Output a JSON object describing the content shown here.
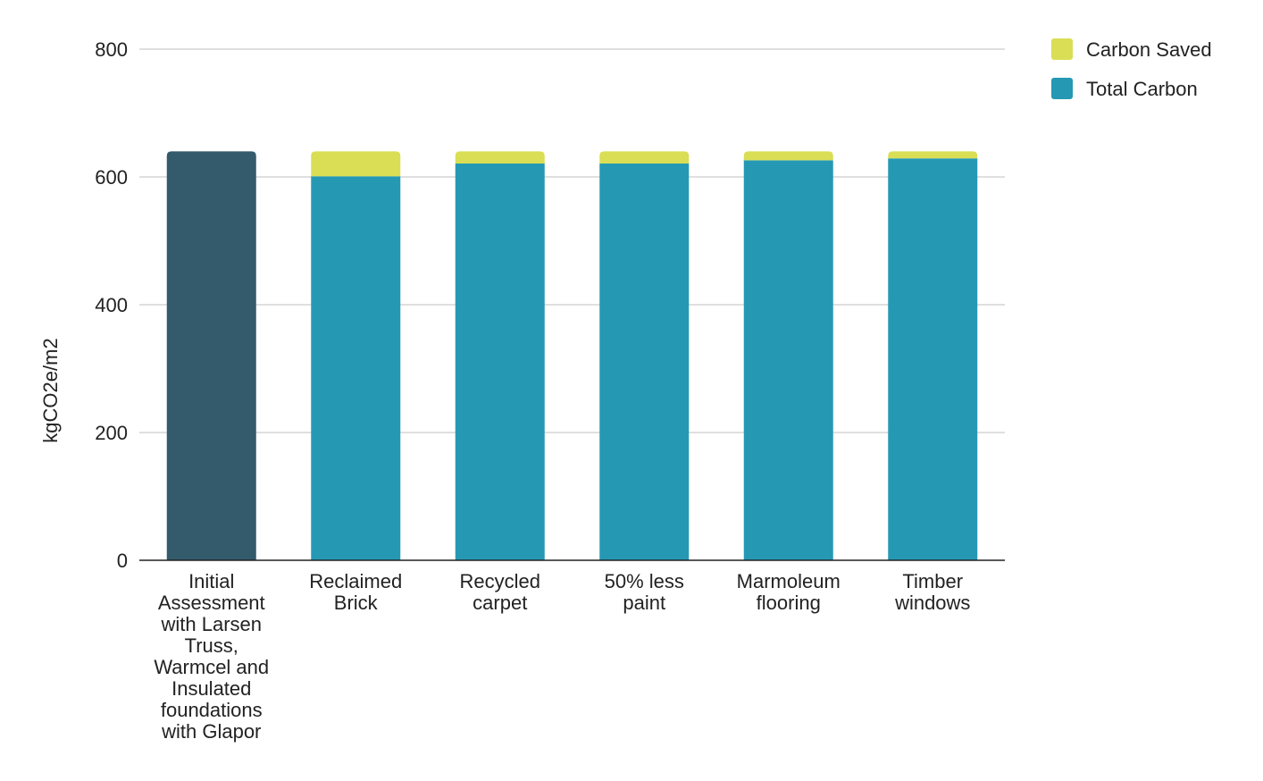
{
  "chart_data": {
    "type": "bar",
    "stacked": true,
    "title": "",
    "xlabel": "",
    "ylabel": "kgCO2e/m2",
    "ylim": [
      0,
      800
    ],
    "yticks": [
      0,
      200,
      400,
      600,
      800
    ],
    "grid": true,
    "legend_position": "top-right",
    "categories": [
      "Initial Assessment with Larsen Truss, Warmcel and Insulated foundations with Glapor",
      "Reclaimed Brick",
      "Recycled carpet",
      "50% less paint",
      "Marmoleum flooring",
      "Timber windows"
    ],
    "category_lines": [
      [
        "Initial",
        "Assessment",
        "with Larsen",
        "Truss,",
        "Warmcel and",
        "Insulated",
        "foundations",
        "with Glapor"
      ],
      [
        "Reclaimed",
        "Brick"
      ],
      [
        "Recycled",
        "carpet"
      ],
      [
        "50% less",
        "paint"
      ],
      [
        "Marmoleum",
        "flooring"
      ],
      [
        "Timber",
        "windows"
      ]
    ],
    "series": [
      {
        "name": "Total Carbon",
        "color": "#2599b3",
        "values": [
          640,
          601,
          621,
          621,
          626,
          629
        ]
      },
      {
        "name": "Carbon Saved",
        "color": "#d9de55",
        "values": [
          0,
          39,
          19,
          19,
          14,
          11
        ]
      }
    ],
    "highlight_colors": [
      "#335b6b",
      null,
      null,
      null,
      null,
      null
    ],
    "legend_order": [
      "Carbon Saved",
      "Total Carbon"
    ]
  }
}
